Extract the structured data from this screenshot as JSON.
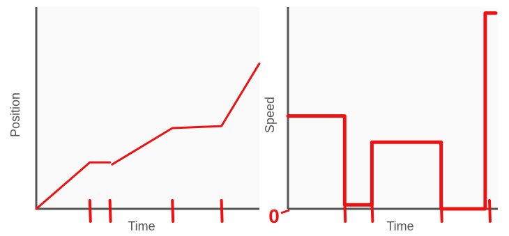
{
  "colors": {
    "background": "#ffffff",
    "axis": "#555555",
    "grid": "#f0f0f0",
    "ink": "#ee1111"
  },
  "chart_data": [
    {
      "type": "line",
      "xlabel": "Time",
      "ylabel": "Position",
      "xlim": [
        0,
        10
      ],
      "ylim": [
        0,
        10
      ],
      "grid": false,
      "series": [
        {
          "x": [
            0,
            2.4,
            3.3
          ],
          "y": [
            0,
            2.3,
            2.3
          ]
        },
        {
          "x": [
            3.4,
            6.1,
            8.3,
            10
          ],
          "y": [
            2.2,
            4.0,
            4.1,
            7.2
          ]
        }
      ],
      "tick_marks_on_time_axis": [
        2.4,
        3.3,
        6.1,
        8.3
      ]
    },
    {
      "type": "line",
      "xlabel": "Time",
      "ylabel": "Speed",
      "xlim": [
        0,
        10
      ],
      "ylim": [
        0,
        10
      ],
      "grid": false,
      "y_annotation": "0",
      "series": [
        {
          "x": [
            0,
            2.7,
            2.7,
            4.0,
            4.0,
            7.3,
            7.3,
            9.4,
            9.4,
            9.9
          ],
          "y": [
            4.6,
            4.6,
            0.2,
            0.2,
            3.3,
            3.3,
            0.0,
            0.0,
            9.7,
            9.7
          ]
        }
      ],
      "tick_marks_on_time_axis": [
        2.7,
        4.0,
        7.3,
        9.6
      ]
    }
  ]
}
